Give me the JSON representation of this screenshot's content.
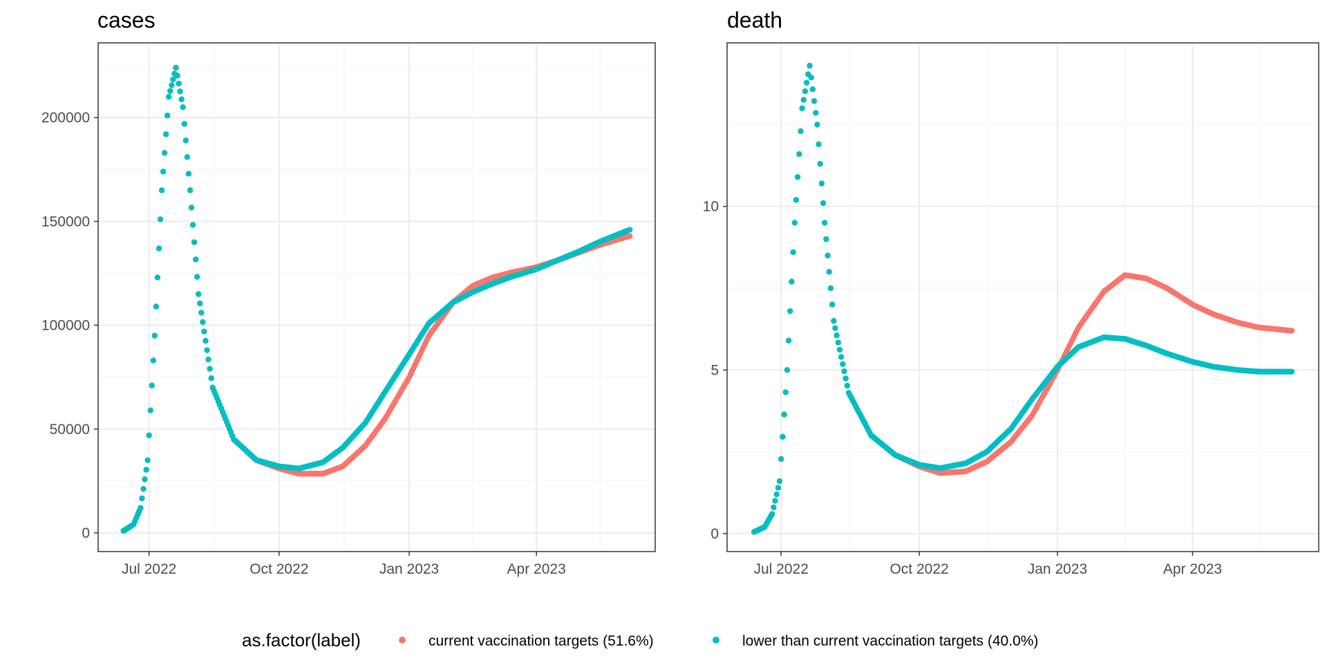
{
  "colors": {
    "series_current": "#F8766D",
    "series_lower": "#00BFC4",
    "panel_border": "#333333",
    "grid_major": "#ebebeb",
    "grid_minor": "#f5f5f5",
    "background": "#ffffff"
  },
  "legend": {
    "title": "as.factor(label)",
    "position": "bottom",
    "items": [
      {
        "label": "current vaccination targets (51.6%)",
        "series": "current"
      },
      {
        "label": "lower than current vaccination targets (40.0%)",
        "series": "lower"
      }
    ]
  },
  "chart_data": [
    {
      "type": "scatter",
      "title": "cases",
      "xlabel": "",
      "ylabel": "",
      "x_type": "date",
      "xlim": [
        "2022-05-26",
        "2023-06-24"
      ],
      "ylim": [
        -9000,
        236000
      ],
      "x_ticks": [
        {
          "date": "2022-07-01",
          "label": "Jul 2022"
        },
        {
          "date": "2022-10-01",
          "label": "Oct 2022"
        },
        {
          "date": "2023-01-01",
          "label": "Jan 2023"
        },
        {
          "date": "2023-04-01",
          "label": "Apr 2023"
        }
      ],
      "y_ticks": [
        0,
        50000,
        100000,
        150000,
        200000
      ],
      "y_tick_labels": [
        "0",
        "50000",
        "100000",
        "150000",
        "200000"
      ],
      "grid": true,
      "series": [
        {
          "name": "current vaccination targets (51.6%)",
          "key": "current",
          "start_date": "2022-06-13",
          "end_date": "2023-06-06",
          "points": [
            [
              "2022-06-13",
              1000
            ],
            [
              "2022-06-20",
              4000
            ],
            [
              "2022-06-25",
              12000
            ],
            [
              "2022-06-30",
              35000
            ],
            [
              "2022-07-05",
              95000
            ],
            [
              "2022-07-10",
              165000
            ],
            [
              "2022-07-15",
              210000
            ],
            [
              "2022-07-20",
              224000
            ],
            [
              "2022-07-25",
              205000
            ],
            [
              "2022-07-30",
              165000
            ],
            [
              "2022-08-05",
              115000
            ],
            [
              "2022-08-15",
              70000
            ],
            [
              "2022-08-30",
              45000
            ],
            [
              "2022-09-15",
              35000
            ],
            [
              "2022-10-01",
              31000
            ],
            [
              "2022-10-15",
              28500
            ],
            [
              "2022-11-01",
              28500
            ],
            [
              "2022-11-15",
              32000
            ],
            [
              "2022-12-01",
              42000
            ],
            [
              "2022-12-15",
              55000
            ],
            [
              "2023-01-01",
              75000
            ],
            [
              "2023-01-15",
              95000
            ],
            [
              "2023-02-01",
              111000
            ],
            [
              "2023-02-15",
              119000
            ],
            [
              "2023-03-01",
              123000
            ],
            [
              "2023-03-15",
              125500
            ],
            [
              "2023-04-01",
              128000
            ],
            [
              "2023-04-15",
              131000
            ],
            [
              "2023-05-01",
              135000
            ],
            [
              "2023-05-15",
              138500
            ],
            [
              "2023-06-06",
              143000
            ]
          ]
        },
        {
          "name": "lower than current vaccination targets (40.0%)",
          "key": "lower",
          "start_date": "2022-06-13",
          "end_date": "2023-06-06",
          "points": [
            [
              "2022-06-13",
              1000
            ],
            [
              "2022-06-20",
              4000
            ],
            [
              "2022-06-25",
              12000
            ],
            [
              "2022-06-30",
              35000
            ],
            [
              "2022-07-05",
              95000
            ],
            [
              "2022-07-10",
              165000
            ],
            [
              "2022-07-15",
              210000
            ],
            [
              "2022-07-20",
              224000
            ],
            [
              "2022-07-25",
              205000
            ],
            [
              "2022-07-30",
              165000
            ],
            [
              "2022-08-05",
              115000
            ],
            [
              "2022-08-15",
              70000
            ],
            [
              "2022-08-30",
              45000
            ],
            [
              "2022-09-15",
              35000
            ],
            [
              "2022-10-01",
              32000
            ],
            [
              "2022-10-15",
              31000
            ],
            [
              "2022-11-01",
              34000
            ],
            [
              "2022-11-15",
              41000
            ],
            [
              "2022-12-01",
              53000
            ],
            [
              "2022-12-15",
              68000
            ],
            [
              "2023-01-01",
              86000
            ],
            [
              "2023-01-15",
              101000
            ],
            [
              "2023-02-01",
              111000
            ],
            [
              "2023-02-15",
              116000
            ],
            [
              "2023-03-01",
              120000
            ],
            [
              "2023-03-15",
              123500
            ],
            [
              "2023-04-01",
              127000
            ],
            [
              "2023-04-15",
              131000
            ],
            [
              "2023-05-01",
              135500
            ],
            [
              "2023-05-15",
              140000
            ],
            [
              "2023-06-06",
              146000
            ]
          ]
        }
      ]
    },
    {
      "type": "scatter",
      "title": "death",
      "xlabel": "",
      "ylabel": "",
      "x_type": "date",
      "xlim": [
        "2022-05-26",
        "2023-06-24"
      ],
      "ylim": [
        -0.55,
        15.0
      ],
      "x_ticks": [
        {
          "date": "2022-07-01",
          "label": "Jul 2022"
        },
        {
          "date": "2022-10-01",
          "label": "Oct 2022"
        },
        {
          "date": "2023-01-01",
          "label": "Jan 2023"
        },
        {
          "date": "2023-04-01",
          "label": "Apr 2023"
        }
      ],
      "y_ticks": [
        0,
        5,
        10
      ],
      "y_tick_labels": [
        "0",
        "5",
        "10"
      ],
      "grid": true,
      "series": [
        {
          "name": "current vaccination targets (51.6%)",
          "key": "current",
          "start_date": "2022-06-13",
          "end_date": "2023-06-06",
          "points": [
            [
              "2022-06-13",
              0.05
            ],
            [
              "2022-06-20",
              0.2
            ],
            [
              "2022-06-25",
              0.6
            ],
            [
              "2022-06-30",
              1.6
            ],
            [
              "2022-07-05",
              5.0
            ],
            [
              "2022-07-10",
              9.5
            ],
            [
              "2022-07-15",
              13.0
            ],
            [
              "2022-07-20",
              14.3
            ],
            [
              "2022-07-25",
              12.5
            ],
            [
              "2022-07-30",
              9.5
            ],
            [
              "2022-08-05",
              6.5
            ],
            [
              "2022-08-15",
              4.3
            ],
            [
              "2022-08-30",
              3.0
            ],
            [
              "2022-09-15",
              2.4
            ],
            [
              "2022-10-01",
              2.05
            ],
            [
              "2022-10-15",
              1.85
            ],
            [
              "2022-11-01",
              1.9
            ],
            [
              "2022-11-15",
              2.2
            ],
            [
              "2022-12-01",
              2.8
            ],
            [
              "2022-12-15",
              3.6
            ],
            [
              "2023-01-01",
              5.0
            ],
            [
              "2023-01-15",
              6.3
            ],
            [
              "2023-02-01",
              7.4
            ],
            [
              "2023-02-15",
              7.9
            ],
            [
              "2023-03-01",
              7.8
            ],
            [
              "2023-03-15",
              7.5
            ],
            [
              "2023-04-01",
              7.0
            ],
            [
              "2023-04-15",
              6.7
            ],
            [
              "2023-05-01",
              6.45
            ],
            [
              "2023-05-15",
              6.3
            ],
            [
              "2023-06-06",
              6.2
            ]
          ]
        },
        {
          "name": "lower than current vaccination targets (40.0%)",
          "key": "lower",
          "start_date": "2022-06-13",
          "end_date": "2023-06-06",
          "points": [
            [
              "2022-06-13",
              0.05
            ],
            [
              "2022-06-20",
              0.2
            ],
            [
              "2022-06-25",
              0.6
            ],
            [
              "2022-06-30",
              1.6
            ],
            [
              "2022-07-05",
              5.0
            ],
            [
              "2022-07-10",
              9.5
            ],
            [
              "2022-07-15",
              13.0
            ],
            [
              "2022-07-20",
              14.3
            ],
            [
              "2022-07-25",
              12.5
            ],
            [
              "2022-07-30",
              9.5
            ],
            [
              "2022-08-05",
              6.5
            ],
            [
              "2022-08-15",
              4.3
            ],
            [
              "2022-08-30",
              3.0
            ],
            [
              "2022-09-15",
              2.4
            ],
            [
              "2022-10-01",
              2.1
            ],
            [
              "2022-10-15",
              2.0
            ],
            [
              "2022-11-01",
              2.15
            ],
            [
              "2022-11-15",
              2.5
            ],
            [
              "2022-12-01",
              3.2
            ],
            [
              "2022-12-15",
              4.1
            ],
            [
              "2023-01-01",
              5.1
            ],
            [
              "2023-01-15",
              5.7
            ],
            [
              "2023-02-01",
              6.0
            ],
            [
              "2023-02-15",
              5.95
            ],
            [
              "2023-03-01",
              5.75
            ],
            [
              "2023-03-15",
              5.5
            ],
            [
              "2023-04-01",
              5.25
            ],
            [
              "2023-04-15",
              5.1
            ],
            [
              "2023-05-01",
              5.0
            ],
            [
              "2023-05-15",
              4.95
            ],
            [
              "2023-06-06",
              4.95
            ]
          ]
        }
      ]
    }
  ]
}
